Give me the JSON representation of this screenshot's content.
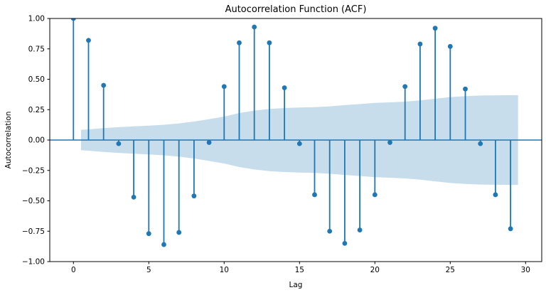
{
  "figure": {
    "title": "Autocorrelation Function (ACF)",
    "xlabel": "Lag",
    "ylabel": "Autocorrelation"
  },
  "chart_data": {
    "type": "stem",
    "title": "Autocorrelation Function (ACF)",
    "xlabel": "Lag",
    "ylabel": "Autocorrelation",
    "xlim": [
      -1.57,
      31.07
    ],
    "ylim": [
      -1.0,
      1.0
    ],
    "xticks": [
      0,
      5,
      10,
      15,
      20,
      25,
      30
    ],
    "yticks": [
      {
        "v": 1.0,
        "label": "1.00"
      },
      {
        "v": 0.75,
        "label": "0.75"
      },
      {
        "v": 0.5,
        "label": "0.50"
      },
      {
        "v": 0.25,
        "label": "0.25"
      },
      {
        "v": 0.0,
        "label": "0.00"
      },
      {
        "v": -0.25,
        "label": "−0.25"
      },
      {
        "v": -0.5,
        "label": "−0.50"
      },
      {
        "v": -0.75,
        "label": "−0.75"
      },
      {
        "v": -1.0,
        "label": "−1.00"
      }
    ],
    "grid": false,
    "legend": "none",
    "series": [
      {
        "name": "ACF",
        "lags": [
          0,
          1,
          2,
          3,
          4,
          5,
          6,
          7,
          8,
          9,
          10,
          11,
          12,
          13,
          14,
          15,
          16,
          17,
          18,
          19,
          20,
          21,
          22,
          23,
          24,
          25,
          26,
          27,
          28,
          29
        ],
        "values": [
          1.0,
          0.82,
          0.45,
          -0.03,
          -0.47,
          -0.77,
          -0.86,
          -0.76,
          -0.46,
          -0.02,
          0.44,
          0.8,
          0.93,
          0.8,
          0.43,
          -0.03,
          -0.45,
          -0.75,
          -0.85,
          -0.74,
          -0.45,
          -0.02,
          0.44,
          0.79,
          0.92,
          0.77,
          0.42,
          -0.03,
          -0.45,
          -0.73
        ]
      }
    ],
    "confidence_band": {
      "symmetric": true,
      "x": [
        0.5,
        1,
        2,
        3,
        4,
        5,
        6,
        7,
        8,
        9,
        10,
        11,
        12,
        13,
        14,
        15,
        16,
        17,
        18,
        19,
        20,
        21,
        22,
        23,
        24,
        25,
        26,
        27,
        28,
        29,
        29.5
      ],
      "upper": [
        0.084,
        0.088,
        0.098,
        0.106,
        0.113,
        0.119,
        0.126,
        0.137,
        0.152,
        0.172,
        0.193,
        0.222,
        0.242,
        0.256,
        0.263,
        0.267,
        0.271,
        0.277,
        0.287,
        0.296,
        0.305,
        0.31,
        0.316,
        0.326,
        0.34,
        0.353,
        0.361,
        0.366,
        0.368,
        0.369,
        0.369
      ]
    },
    "colors": {
      "stem": "#1f77b4",
      "marker": "#1f77b4",
      "band": "rgba(31,119,180,0.25)",
      "zero_line": "#1f77b4",
      "spine": "#000000",
      "text": "#000000",
      "background": "#ffffff"
    }
  }
}
